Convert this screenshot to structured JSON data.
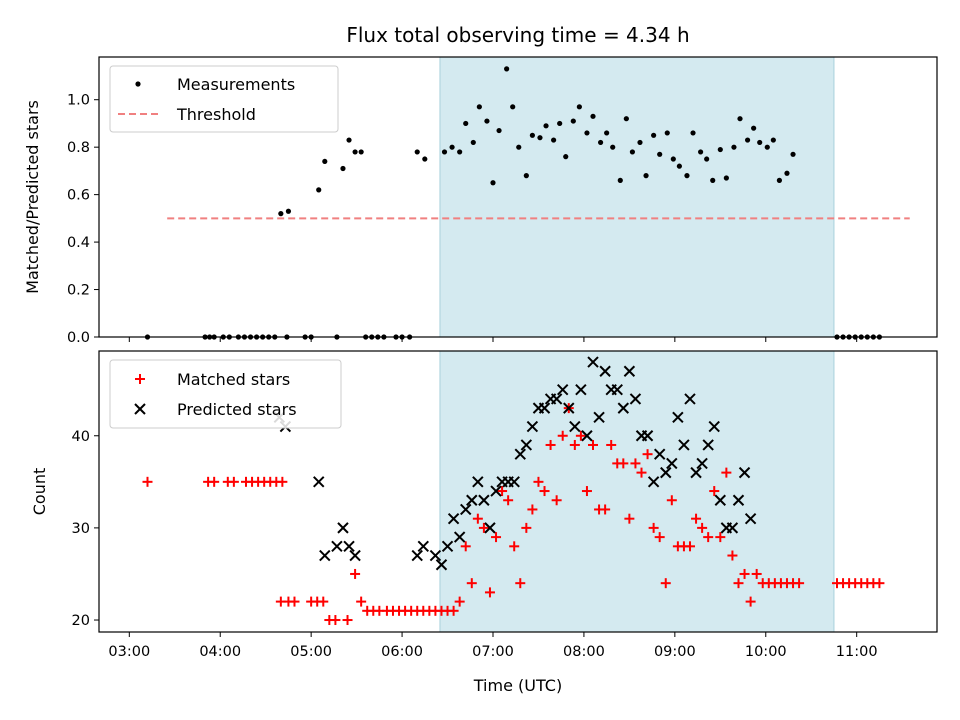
{
  "chart_data": [
    {
      "type": "scatter",
      "title": "Flux total observing time = 4.34 h",
      "ylabel": "Matched/Predicted stars",
      "ylim": [
        0,
        1.18
      ],
      "yticks": [
        "0.0",
        "0.2",
        "0.4",
        "0.6",
        "0.8",
        "1.0"
      ],
      "shaded_region": {
        "start": "06:25",
        "end": "10:45",
        "color": "#d4eaf0"
      },
      "legend_position": "upper-left",
      "series": [
        {
          "name": "Measurements",
          "marker": "dot",
          "color": "#000000",
          "points": [
            [
              "03:12",
              0.0
            ],
            [
              "03:50",
              0.0
            ],
            [
              "03:53",
              0.0
            ],
            [
              "03:56",
              0.0
            ],
            [
              "04:02",
              0.0
            ],
            [
              "04:06",
              0.0
            ],
            [
              "04:12",
              0.0
            ],
            [
              "04:16",
              0.0
            ],
            [
              "04:20",
              0.0
            ],
            [
              "04:24",
              0.0
            ],
            [
              "04:28",
              0.0
            ],
            [
              "04:32",
              0.0
            ],
            [
              "04:36",
              0.0
            ],
            [
              "04:44",
              0.0
            ],
            [
              "04:56",
              0.0
            ],
            [
              "05:00",
              0.0
            ],
            [
              "05:17",
              0.0
            ],
            [
              "05:36",
              0.0
            ],
            [
              "05:40",
              0.0
            ],
            [
              "05:44",
              0.0
            ],
            [
              "05:48",
              0.0
            ],
            [
              "05:56",
              0.0
            ],
            [
              "06:00",
              0.0
            ],
            [
              "06:05",
              0.0
            ],
            [
              "04:40",
              0.52
            ],
            [
              "04:45",
              0.53
            ],
            [
              "05:05",
              0.62
            ],
            [
              "05:09",
              0.74
            ],
            [
              "05:21",
              0.71
            ],
            [
              "05:25",
              0.83
            ],
            [
              "05:29",
              0.78
            ],
            [
              "05:33",
              0.78
            ],
            [
              "06:10",
              0.78
            ],
            [
              "06:15",
              0.75
            ],
            [
              "06:28",
              0.78
            ],
            [
              "06:33",
              0.8
            ],
            [
              "06:38",
              0.78
            ],
            [
              "06:42",
              0.9
            ],
            [
              "06:47",
              0.82
            ],
            [
              "06:51",
              0.97
            ],
            [
              "06:56",
              0.91
            ],
            [
              "07:00",
              0.65
            ],
            [
              "07:04",
              0.87
            ],
            [
              "07:09",
              1.13
            ],
            [
              "07:13",
              0.97
            ],
            [
              "07:17",
              0.8
            ],
            [
              "07:22",
              0.68
            ],
            [
              "07:26",
              0.85
            ],
            [
              "07:31",
              0.84
            ],
            [
              "07:35",
              0.89
            ],
            [
              "07:40",
              0.83
            ],
            [
              "07:44",
              0.9
            ],
            [
              "07:48",
              0.76
            ],
            [
              "07:53",
              0.91
            ],
            [
              "07:57",
              0.97
            ],
            [
              "08:02",
              0.86
            ],
            [
              "08:06",
              0.93
            ],
            [
              "08:11",
              0.82
            ],
            [
              "08:15",
              0.86
            ],
            [
              "08:19",
              0.8
            ],
            [
              "08:24",
              0.66
            ],
            [
              "08:28",
              0.92
            ],
            [
              "08:32",
              0.78
            ],
            [
              "08:37",
              0.82
            ],
            [
              "08:41",
              0.68
            ],
            [
              "08:46",
              0.85
            ],
            [
              "08:50",
              0.77
            ],
            [
              "08:55",
              0.86
            ],
            [
              "08:59",
              0.75
            ],
            [
              "09:03",
              0.72
            ],
            [
              "09:08",
              0.68
            ],
            [
              "09:12",
              0.86
            ],
            [
              "09:17",
              0.78
            ],
            [
              "09:21",
              0.75
            ],
            [
              "09:25",
              0.66
            ],
            [
              "09:30",
              0.79
            ],
            [
              "09:34",
              0.67
            ],
            [
              "09:39",
              0.8
            ],
            [
              "09:43",
              0.92
            ],
            [
              "09:48",
              0.83
            ],
            [
              "09:52",
              0.88
            ],
            [
              "09:56",
              0.82
            ],
            [
              "10:01",
              0.8
            ],
            [
              "10:05",
              0.83
            ],
            [
              "10:09",
              0.66
            ],
            [
              "10:14",
              0.69
            ],
            [
              "10:18",
              0.77
            ],
            [
              "10:47",
              0.0
            ],
            [
              "10:51",
              0.0
            ],
            [
              "10:55",
              0.0
            ],
            [
              "10:59",
              0.0
            ],
            [
              "11:03",
              0.0
            ],
            [
              "11:07",
              0.0
            ],
            [
              "11:11",
              0.0
            ],
            [
              "11:15",
              0.0
            ]
          ]
        },
        {
          "name": "Threshold",
          "type": "line",
          "style": "dashed",
          "color": "#f08080",
          "x": [
            "03:25",
            "11:35"
          ],
          "y": [
            0.5,
            0.5
          ]
        }
      ]
    },
    {
      "type": "scatter",
      "xlabel": "Time (UTC)",
      "ylabel": "Count",
      "xticks": [
        "03:00",
        "04:00",
        "05:00",
        "06:00",
        "07:00",
        "08:00",
        "09:00",
        "10:00",
        "11:00"
      ],
      "yticks": [
        "20",
        "30",
        "40"
      ],
      "ylim": [
        18.7,
        49.2
      ],
      "shaded_region": {
        "start": "06:25",
        "end": "10:45",
        "color": "#d4eaf0"
      },
      "legend_position": "upper-left",
      "series": [
        {
          "name": "Matched stars",
          "marker": "plus",
          "color": "#ff0000",
          "points": [
            [
              "03:12",
              35
            ],
            [
              "03:52",
              35
            ],
            [
              "03:56",
              35
            ],
            [
              "04:05",
              35
            ],
            [
              "04:09",
              35
            ],
            [
              "04:17",
              35
            ],
            [
              "04:21",
              35
            ],
            [
              "04:25",
              35
            ],
            [
              "04:29",
              35
            ],
            [
              "04:33",
              35
            ],
            [
              "04:37",
              35
            ],
            [
              "04:41",
              35
            ],
            [
              "04:40",
              22
            ],
            [
              "04:45",
              22
            ],
            [
              "04:49",
              22
            ],
            [
              "05:00",
              22
            ],
            [
              "05:04",
              22
            ],
            [
              "05:08",
              22
            ],
            [
              "05:12",
              20
            ],
            [
              "05:16",
              20
            ],
            [
              "05:24",
              20
            ],
            [
              "05:29",
              25
            ],
            [
              "05:33",
              22
            ],
            [
              "05:37",
              21
            ],
            [
              "05:41",
              21
            ],
            [
              "05:45",
              21
            ],
            [
              "05:50",
              21
            ],
            [
              "05:54",
              21
            ],
            [
              "05:58",
              21
            ],
            [
              "06:02",
              21
            ],
            [
              "06:06",
              21
            ],
            [
              "06:10",
              21
            ],
            [
              "06:14",
              21
            ],
            [
              "06:18",
              21
            ],
            [
              "06:22",
              21
            ],
            [
              "06:26",
              21
            ],
            [
              "06:30",
              21
            ],
            [
              "06:34",
              21
            ],
            [
              "06:38",
              22
            ],
            [
              "06:42",
              28
            ],
            [
              "06:46",
              24
            ],
            [
              "06:50",
              31
            ],
            [
              "06:54",
              30
            ],
            [
              "06:58",
              23
            ],
            [
              "07:02",
              29
            ],
            [
              "07:06",
              34
            ],
            [
              "07:10",
              33
            ],
            [
              "07:14",
              28
            ],
            [
              "07:18",
              24
            ],
            [
              "07:22",
              30
            ],
            [
              "07:26",
              32
            ],
            [
              "07:30",
              35
            ],
            [
              "07:34",
              34
            ],
            [
              "07:38",
              39
            ],
            [
              "07:42",
              33
            ],
            [
              "07:46",
              40
            ],
            [
              "07:50",
              43
            ],
            [
              "07:54",
              39
            ],
            [
              "07:58",
              40
            ],
            [
              "08:02",
              34
            ],
            [
              "08:06",
              39
            ],
            [
              "08:10",
              32
            ],
            [
              "08:14",
              32
            ],
            [
              "08:18",
              39
            ],
            [
              "08:22",
              37
            ],
            [
              "08:26",
              37
            ],
            [
              "08:30",
              31
            ],
            [
              "08:34",
              37
            ],
            [
              "08:38",
              36
            ],
            [
              "08:42",
              38
            ],
            [
              "08:46",
              30
            ],
            [
              "08:50",
              29
            ],
            [
              "08:54",
              24
            ],
            [
              "08:58",
              33
            ],
            [
              "09:02",
              28
            ],
            [
              "09:06",
              28
            ],
            [
              "09:10",
              28
            ],
            [
              "09:14",
              31
            ],
            [
              "09:18",
              30
            ],
            [
              "09:22",
              29
            ],
            [
              "09:26",
              34
            ],
            [
              "09:30",
              29
            ],
            [
              "09:34",
              36
            ],
            [
              "09:38",
              27
            ],
            [
              "09:42",
              24
            ],
            [
              "09:46",
              25
            ],
            [
              "09:50",
              22
            ],
            [
              "09:54",
              25
            ],
            [
              "09:58",
              24
            ],
            [
              "10:02",
              24
            ],
            [
              "10:06",
              24
            ],
            [
              "10:10",
              24
            ],
            [
              "10:14",
              24
            ],
            [
              "10:18",
              24
            ],
            [
              "10:22",
              24
            ],
            [
              "10:47",
              24
            ],
            [
              "10:51",
              24
            ],
            [
              "10:55",
              24
            ],
            [
              "10:59",
              24
            ],
            [
              "11:03",
              24
            ],
            [
              "11:07",
              24
            ],
            [
              "11:11",
              24
            ],
            [
              "11:15",
              24
            ]
          ]
        },
        {
          "name": "Predicted stars",
          "marker": "x",
          "color": "#000000",
          "points": [
            [
              "04:39",
              42
            ],
            [
              "04:43",
              41
            ],
            [
              "05:05",
              35
            ],
            [
              "05:09",
              27
            ],
            [
              "05:17",
              28
            ],
            [
              "05:21",
              30
            ],
            [
              "05:25",
              28
            ],
            [
              "05:29",
              27
            ],
            [
              "06:10",
              27
            ],
            [
              "06:14",
              28
            ],
            [
              "06:22",
              27
            ],
            [
              "06:26",
              26
            ],
            [
              "06:30",
              28
            ],
            [
              "06:34",
              31
            ],
            [
              "06:38",
              29
            ],
            [
              "06:42",
              32
            ],
            [
              "06:46",
              33
            ],
            [
              "06:50",
              35
            ],
            [
              "06:54",
              33
            ],
            [
              "06:58",
              30
            ],
            [
              "07:02",
              34
            ],
            [
              "07:06",
              35
            ],
            [
              "07:10",
              35
            ],
            [
              "07:14",
              35
            ],
            [
              "07:18",
              38
            ],
            [
              "07:22",
              39
            ],
            [
              "07:26",
              41
            ],
            [
              "07:30",
              43
            ],
            [
              "07:34",
              43
            ],
            [
              "07:38",
              44
            ],
            [
              "07:42",
              44
            ],
            [
              "07:46",
              45
            ],
            [
              "07:50",
              43
            ],
            [
              "07:54",
              41
            ],
            [
              "07:58",
              45
            ],
            [
              "08:02",
              40
            ],
            [
              "08:06",
              48
            ],
            [
              "08:10",
              42
            ],
            [
              "08:14",
              47
            ],
            [
              "08:18",
              45
            ],
            [
              "08:22",
              45
            ],
            [
              "08:26",
              43
            ],
            [
              "08:30",
              47
            ],
            [
              "08:34",
              44
            ],
            [
              "08:38",
              40
            ],
            [
              "08:42",
              40
            ],
            [
              "08:46",
              35
            ],
            [
              "08:50",
              38
            ],
            [
              "08:54",
              36
            ],
            [
              "08:58",
              37
            ],
            [
              "09:02",
              42
            ],
            [
              "09:06",
              39
            ],
            [
              "09:10",
              44
            ],
            [
              "09:14",
              36
            ],
            [
              "09:18",
              37
            ],
            [
              "09:22",
              39
            ],
            [
              "09:26",
              41
            ],
            [
              "09:30",
              33
            ],
            [
              "09:34",
              30
            ],
            [
              "09:38",
              30
            ],
            [
              "09:42",
              33
            ],
            [
              "09:46",
              36
            ],
            [
              "09:50",
              31
            ]
          ]
        }
      ]
    }
  ]
}
